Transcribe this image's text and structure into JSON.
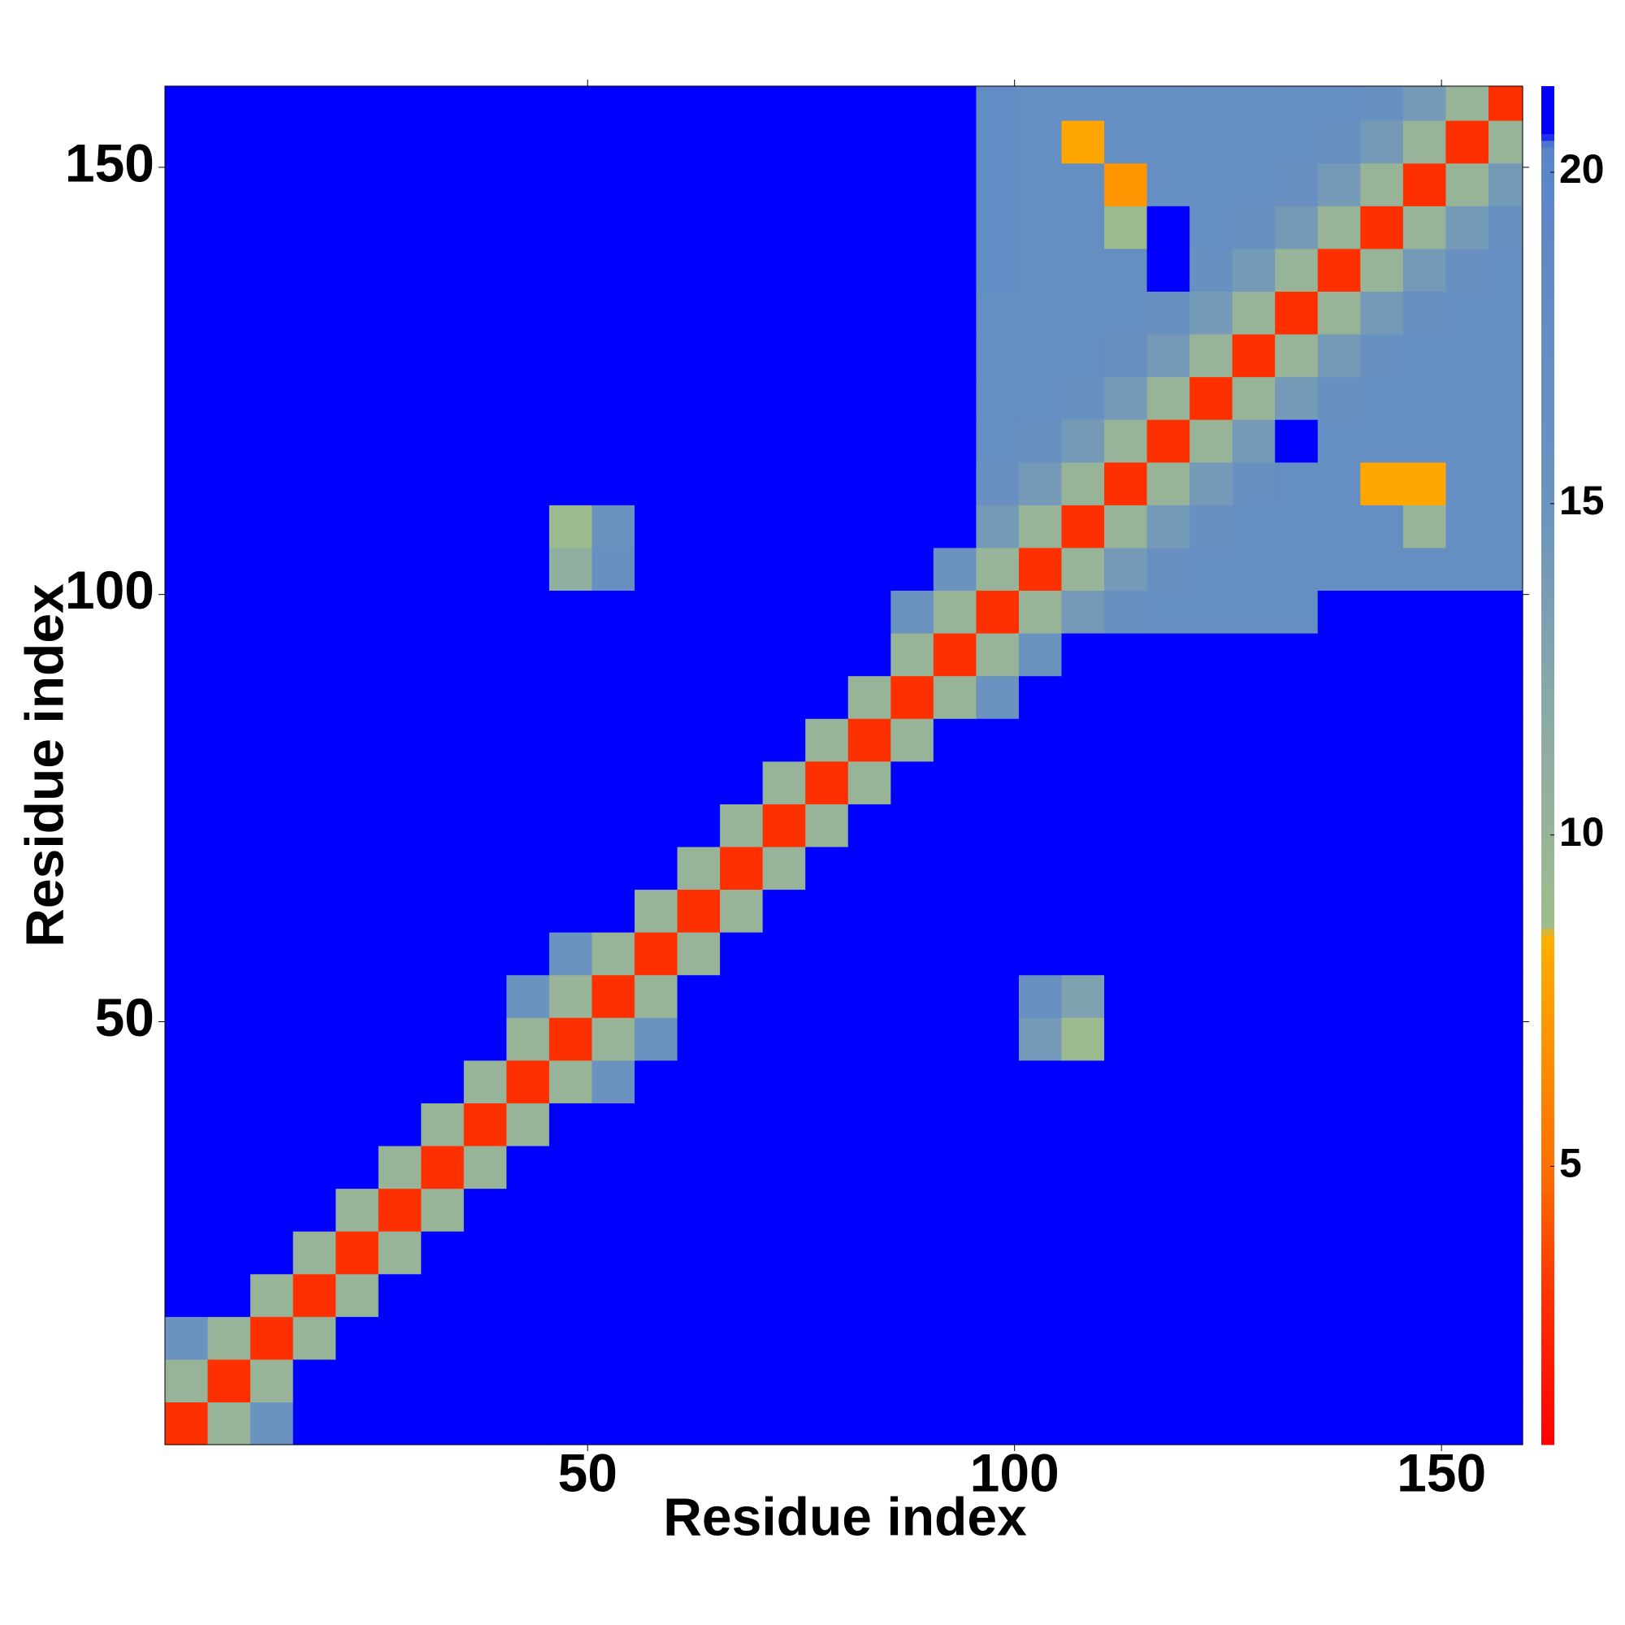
{
  "chart_data": {
    "type": "heatmap",
    "xlabel": "Residue index",
    "ylabel": "Residue index",
    "xlim": [
      0.5,
      159.5
    ],
    "ylim": [
      0.5,
      159.5
    ],
    "xticks": [
      50,
      100,
      150
    ],
    "yticks": [
      50,
      100,
      150
    ],
    "xbins": [
      0.5,
      5.5,
      10.5,
      15.5,
      20.5,
      25.5,
      30.5,
      35.5,
      40.5,
      45.5,
      50.5,
      55.5,
      60.5,
      65.5,
      70.5,
      75.5,
      80.5,
      85.5,
      90.5,
      95.5,
      100.5,
      105.5,
      110.5,
      115.5,
      120.5,
      125.5,
      130.5,
      135.5,
      140.5,
      145.5,
      150.5,
      155.5,
      159.5
    ],
    "ybins": [
      0.5,
      5.5,
      10.5,
      15.5,
      20.5,
      25.5,
      30.5,
      35.5,
      40.5,
      45.5,
      50.5,
      55.5,
      60.5,
      65.5,
      70.5,
      75.5,
      80.5,
      85.5,
      90.5,
      95.5,
      100.5,
      105.5,
      110.5,
      115.5,
      120.5,
      125.5,
      130.5,
      135.5,
      140.5,
      145.5,
      150.5,
      155.5,
      159.5
    ],
    "z": [
      [
        3,
        10,
        15,
        21,
        21,
        21,
        21,
        21,
        21,
        21,
        21,
        21,
        21,
        21,
        21,
        21,
        21,
        21,
        21,
        21,
        21,
        21,
        21,
        21,
        21,
        21,
        21,
        21,
        21,
        21,
        21,
        21
      ],
      [
        10,
        3,
        10,
        21,
        21,
        21,
        21,
        21,
        21,
        21,
        21,
        21,
        21,
        21,
        21,
        21,
        21,
        21,
        21,
        21,
        21,
        21,
        21,
        21,
        21,
        21,
        21,
        21,
        21,
        21,
        21,
        21
      ],
      [
        15,
        10,
        3,
        10,
        21,
        21,
        21,
        21,
        21,
        21,
        21,
        21,
        21,
        21,
        21,
        21,
        21,
        21,
        21,
        21,
        21,
        21,
        21,
        21,
        21,
        21,
        21,
        21,
        21,
        21,
        21,
        21
      ],
      [
        21,
        21,
        10,
        3,
        10,
        21,
        21,
        21,
        21,
        21,
        21,
        21,
        21,
        21,
        21,
        21,
        21,
        21,
        21,
        21,
        21,
        21,
        21,
        21,
        21,
        21,
        21,
        21,
        21,
        21,
        21,
        21
      ],
      [
        21,
        21,
        21,
        10,
        3,
        10,
        21,
        21,
        21,
        21,
        21,
        21,
        21,
        21,
        21,
        21,
        21,
        21,
        21,
        21,
        21,
        21,
        21,
        21,
        21,
        21,
        21,
        21,
        21,
        21,
        21,
        21
      ],
      [
        21,
        21,
        21,
        21,
        10,
        3,
        10,
        21,
        21,
        21,
        21,
        21,
        21,
        21,
        21,
        21,
        21,
        21,
        21,
        21,
        21,
        21,
        21,
        21,
        21,
        21,
        21,
        21,
        21,
        21,
        21,
        21
      ],
      [
        21,
        21,
        21,
        21,
        21,
        10,
        3,
        10,
        21,
        21,
        21,
        21,
        21,
        21,
        21,
        21,
        21,
        21,
        21,
        21,
        21,
        21,
        21,
        21,
        21,
        21,
        21,
        21,
        21,
        21,
        21,
        21
      ],
      [
        21,
        21,
        21,
        21,
        21,
        21,
        10,
        3,
        10,
        21,
        21,
        21,
        21,
        21,
        21,
        21,
        21,
        21,
        21,
        21,
        21,
        21,
        21,
        21,
        21,
        21,
        21,
        21,
        21,
        21,
        21,
        21
      ],
      [
        21,
        21,
        21,
        21,
        21,
        21,
        21,
        10,
        3,
        10,
        15,
        21,
        21,
        21,
        21,
        21,
        21,
        21,
        21,
        21,
        21,
        21,
        21,
        21,
        21,
        21,
        21,
        21,
        21,
        21,
        21,
        21
      ],
      [
        21,
        21,
        21,
        21,
        21,
        21,
        21,
        21,
        10,
        3,
        10,
        15,
        21,
        21,
        21,
        21,
        21,
        21,
        21,
        21,
        14,
        9,
        21,
        21,
        21,
        21,
        21,
        21,
        21,
        21,
        21,
        21
      ],
      [
        21,
        21,
        21,
        21,
        21,
        21,
        21,
        21,
        15,
        10,
        3,
        10,
        21,
        21,
        21,
        21,
        21,
        21,
        21,
        21,
        16,
        13,
        21,
        21,
        21,
        21,
        21,
        21,
        21,
        21,
        21,
        21
      ],
      [
        21,
        21,
        21,
        21,
        21,
        21,
        21,
        21,
        21,
        15,
        10,
        3,
        10,
        21,
        21,
        21,
        21,
        21,
        21,
        21,
        21,
        21,
        21,
        21,
        21,
        21,
        21,
        21,
        21,
        21,
        21,
        21
      ],
      [
        21,
        21,
        21,
        21,
        21,
        21,
        21,
        21,
        21,
        21,
        21,
        10,
        3,
        10,
        21,
        21,
        21,
        21,
        21,
        21,
        21,
        21,
        21,
        21,
        21,
        21,
        21,
        21,
        21,
        21,
        21,
        21
      ],
      [
        21,
        21,
        21,
        21,
        21,
        21,
        21,
        21,
        21,
        21,
        21,
        21,
        10,
        3,
        10,
        21,
        21,
        21,
        21,
        21,
        21,
        21,
        21,
        21,
        21,
        21,
        21,
        21,
        21,
        21,
        21,
        21
      ],
      [
        21,
        21,
        21,
        21,
        21,
        21,
        21,
        21,
        21,
        21,
        21,
        21,
        21,
        10,
        3,
        10,
        21,
        21,
        21,
        21,
        21,
        21,
        21,
        21,
        21,
        21,
        21,
        21,
        21,
        21,
        21,
        21
      ],
      [
        21,
        21,
        21,
        21,
        21,
        21,
        21,
        21,
        21,
        21,
        21,
        21,
        21,
        21,
        10,
        3,
        10,
        21,
        21,
        21,
        21,
        21,
        21,
        21,
        21,
        21,
        21,
        21,
        21,
        21,
        21,
        21
      ],
      [
        21,
        21,
        21,
        21,
        21,
        21,
        21,
        21,
        21,
        21,
        21,
        21,
        21,
        21,
        21,
        10,
        3,
        10,
        21,
        21,
        21,
        21,
        21,
        21,
        21,
        21,
        21,
        21,
        21,
        21,
        21,
        21
      ],
      [
        21,
        21,
        21,
        21,
        21,
        21,
        21,
        21,
        21,
        21,
        21,
        21,
        21,
        21,
        21,
        21,
        10,
        3,
        10,
        15,
        21,
        21,
        21,
        21,
        21,
        21,
        21,
        21,
        21,
        21,
        21,
        21
      ],
      [
        21,
        21,
        21,
        21,
        21,
        21,
        21,
        21,
        21,
        21,
        21,
        21,
        21,
        21,
        21,
        21,
        21,
        10,
        3,
        10,
        15,
        21,
        21,
        21,
        21,
        21,
        21,
        21,
        21,
        21,
        21,
        21
      ],
      [
        21,
        21,
        21,
        21,
        21,
        21,
        21,
        21,
        21,
        21,
        21,
        21,
        21,
        21,
        21,
        21,
        21,
        15,
        10,
        3,
        10,
        14,
        16,
        17,
        17,
        17,
        17,
        21,
        21,
        21,
        21,
        21
      ],
      [
        21,
        21,
        21,
        21,
        21,
        21,
        21,
        21,
        21,
        11,
        16,
        21,
        21,
        21,
        21,
        21,
        21,
        21,
        15,
        10,
        3,
        10,
        14,
        16,
        17,
        17,
        17,
        17,
        17,
        17,
        17,
        17
      ],
      [
        21,
        21,
        21,
        21,
        21,
        21,
        21,
        21,
        21,
        9,
        15,
        21,
        21,
        21,
        21,
        21,
        21,
        21,
        21,
        14,
        10,
        3,
        10,
        14,
        16,
        17,
        17,
        17,
        17,
        10,
        17,
        17
      ],
      [
        21,
        21,
        21,
        21,
        21,
        21,
        21,
        21,
        21,
        21,
        21,
        21,
        21,
        21,
        21,
        21,
        21,
        21,
        21,
        16,
        14,
        10,
        3,
        10,
        14,
        16,
        17,
        17,
        8,
        8,
        17,
        17
      ],
      [
        21,
        21,
        21,
        21,
        21,
        21,
        21,
        21,
        21,
        21,
        21,
        21,
        21,
        21,
        21,
        21,
        21,
        21,
        21,
        17,
        16,
        14,
        10,
        3,
        10,
        14,
        21,
        17,
        17,
        17,
        17,
        17
      ],
      [
        21,
        21,
        21,
        21,
        21,
        21,
        21,
        21,
        21,
        21,
        21,
        21,
        21,
        21,
        21,
        21,
        21,
        21,
        21,
        17,
        17,
        16,
        14,
        10,
        3,
        10,
        14,
        16,
        17,
        17,
        17,
        17
      ],
      [
        21,
        21,
        21,
        21,
        21,
        21,
        21,
        21,
        21,
        21,
        21,
        21,
        21,
        21,
        21,
        21,
        21,
        21,
        21,
        17,
        17,
        17,
        16,
        14,
        10,
        3,
        10,
        14,
        16,
        17,
        17,
        17
      ],
      [
        21,
        21,
        21,
        21,
        21,
        21,
        21,
        21,
        21,
        21,
        21,
        21,
        21,
        21,
        21,
        21,
        21,
        21,
        21,
        17,
        17,
        17,
        17,
        16,
        14,
        10,
        3,
        10,
        14,
        16,
        17,
        17
      ],
      [
        21,
        21,
        21,
        21,
        21,
        21,
        21,
        21,
        21,
        21,
        21,
        21,
        21,
        21,
        21,
        21,
        21,
        21,
        21,
        18,
        17,
        17,
        17,
        21,
        16,
        14,
        10,
        3,
        10,
        14,
        16,
        17
      ],
      [
        21,
        21,
        21,
        21,
        21,
        21,
        21,
        21,
        21,
        21,
        21,
        21,
        21,
        21,
        21,
        21,
        21,
        21,
        21,
        18,
        17,
        17,
        9,
        21,
        17,
        16,
        14,
        10,
        3,
        10,
        14,
        16
      ],
      [
        21,
        21,
        21,
        21,
        21,
        21,
        21,
        21,
        21,
        21,
        21,
        21,
        21,
        21,
        21,
        21,
        21,
        21,
        21,
        18,
        17,
        17,
        7,
        17,
        17,
        17,
        16,
        14,
        10,
        3,
        10,
        14
      ],
      [
        21,
        21,
        21,
        21,
        21,
        21,
        21,
        21,
        21,
        21,
        21,
        21,
        21,
        21,
        21,
        21,
        21,
        21,
        21,
        18,
        17,
        8,
        17,
        17,
        17,
        17,
        17,
        16,
        14,
        10,
        3,
        10
      ],
      [
        21,
        21,
        21,
        21,
        21,
        21,
        21,
        21,
        21,
        21,
        21,
        21,
        21,
        21,
        21,
        21,
        21,
        21,
        21,
        18,
        17,
        17,
        17,
        17,
        17,
        17,
        17,
        17,
        16,
        14,
        10,
        3
      ]
    ],
    "colorscale": [
      [
        0.8,
        "#ff0000"
      ],
      [
        3,
        "#ff3000"
      ],
      [
        5,
        "#ff7000"
      ],
      [
        8.5,
        "#ffb000"
      ],
      [
        8.6,
        "#a0bc8c"
      ],
      [
        12,
        "#8aa9a8"
      ],
      [
        15,
        "#6b93c0"
      ],
      [
        20.4,
        "#5b86c8"
      ],
      [
        20.6,
        "#0000ff"
      ],
      [
        21.3,
        "#0000ff"
      ]
    ],
    "colorbar": {
      "lim": [
        0.8,
        21.3
      ],
      "ticks": [
        5,
        10,
        15,
        20
      ]
    }
  }
}
